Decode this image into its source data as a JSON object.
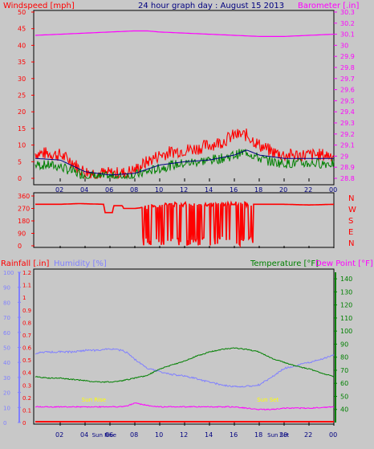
{
  "colors": {
    "background": "#c8c8c8",
    "frame": "#000000",
    "wind_speed": "#ff0000",
    "wind_gust": "#ff0000",
    "wind_avg": "#008000",
    "wind_mid": "#000080",
    "barometer": "#ff00ff",
    "direction": "#ff0000",
    "rainfall": "#ff0000",
    "humidity": "#8080ff",
    "temperature": "#008000",
    "dew_point": "#ff00ff",
    "sun_label": "#ffff00",
    "header_title": "#000080"
  },
  "chart_data": [
    {
      "type": "line",
      "title": "24 hour graph day : August 15 2013",
      "left_axis_label": "Windspeed [mph]",
      "right_axis_label": "Barometer [.in]",
      "x_ticks": [
        "02",
        "04",
        "06",
        "08",
        "10",
        "12",
        "14",
        "16",
        "18",
        "20",
        "22",
        "00"
      ],
      "y_left_ticks": [
        0,
        5,
        10,
        15,
        20,
        25,
        30,
        35,
        40,
        45,
        50
      ],
      "y_left_range": [
        0,
        50
      ],
      "y_right_ticks": [
        "28.8",
        "28.9",
        "29",
        "29.1",
        "29.2",
        "29.3",
        "29.4",
        "29.5",
        "29.6",
        "29.7",
        "29.8",
        "29.9",
        "30",
        "30.1",
        "30.2",
        "30.3"
      ],
      "y_right_range": [
        28.8,
        30.3
      ],
      "series": [
        {
          "role": "gust",
          "hours": [
            0,
            1,
            2,
            3,
            3.5,
            4,
            5,
            6,
            7,
            8,
            9,
            10,
            11,
            12,
            13,
            14,
            15,
            16,
            17,
            18,
            19,
            20,
            21,
            22,
            23,
            24
          ],
          "values": [
            7.5,
            7.5,
            7,
            5,
            3,
            2,
            1.5,
            1.5,
            1.5,
            2.5,
            5,
            7,
            8,
            8.5,
            9,
            10,
            11,
            13,
            13,
            10,
            8,
            7,
            7,
            7,
            7,
            7
          ]
        },
        {
          "role": "avg",
          "hours": [
            0,
            1,
            2,
            3,
            4,
            5,
            6,
            7,
            8,
            9,
            10,
            11,
            12,
            13,
            14,
            15,
            16,
            17,
            18,
            19,
            20,
            21,
            22,
            23,
            24
          ],
          "values": [
            4,
            4,
            3.5,
            2,
            1,
            0.5,
            0.5,
            0.5,
            1,
            2,
            3,
            4,
            4.5,
            5,
            5.5,
            6,
            7,
            8,
            6,
            5,
            4.5,
            4.5,
            4.5,
            4.5,
            4.5
          ]
        },
        {
          "role": "mid",
          "hours": [
            0,
            2,
            4,
            6,
            8,
            10,
            12,
            14,
            16,
            17,
            18,
            20,
            22,
            24
          ],
          "values": [
            6,
            5.5,
            2,
            1,
            1.5,
            4,
            5,
            5.5,
            7,
            8.5,
            7,
            6,
            6,
            6
          ]
        },
        {
          "role": "barometer",
          "hours": [
            0,
            2,
            4,
            6,
            8,
            9,
            10,
            12,
            14,
            16,
            18,
            19,
            20,
            22,
            24
          ],
          "values": [
            30.09,
            30.1,
            30.11,
            30.12,
            30.13,
            30.13,
            30.12,
            30.11,
            30.1,
            30.09,
            30.08,
            30.08,
            30.08,
            30.09,
            30.1
          ]
        }
      ]
    },
    {
      "type": "scatter",
      "title": "",
      "y_ticks": [
        "360",
        "270",
        "180",
        "90",
        "0"
      ],
      "y_range": [
        0,
        360
      ],
      "compass_labels": [
        "N",
        "W",
        "S",
        "E",
        "N"
      ],
      "x_ticks": [
        "02",
        "04",
        "06",
        "08",
        "10",
        "12",
        "14",
        "16",
        "18",
        "20",
        "22",
        "00"
      ],
      "series": [
        {
          "role": "direction",
          "hours": [
            0,
            2,
            3.5,
            5.5,
            5.6,
            6.2,
            6.3,
            7,
            7.1,
            7.5,
            8,
            9,
            10,
            11,
            12,
            13,
            14,
            15,
            16,
            17,
            18,
            20,
            22,
            24
          ],
          "values": [
            300,
            300,
            305,
            300,
            240,
            240,
            290,
            290,
            270,
            270,
            270,
            280,
            290,
            300,
            300,
            305,
            300,
            300,
            305,
            300,
            300,
            300,
            295,
            300
          ]
        }
      ]
    },
    {
      "type": "line",
      "title": "",
      "left_axis_labels": [
        "Rainfall [.in]",
        "Humidity [%]"
      ],
      "right_axis_labels": [
        "Temperature [°F]",
        "Dew Point [°F]"
      ],
      "x_ticks": [
        "02",
        "04",
        "06",
        "08",
        "10",
        "12",
        "14",
        "16",
        "18",
        "20",
        "22",
        "00"
      ],
      "rain_ticks": [
        "0",
        "0.1",
        "0.2",
        "0.3",
        "0.4",
        "0.5",
        "0.6",
        "0.7",
        "0.8",
        "0.9",
        "1",
        "1.1",
        "1.2"
      ],
      "rain_range": [
        0,
        1.2
      ],
      "humidity_ticks": [
        "0",
        "10",
        "20",
        "30",
        "40",
        "50",
        "60",
        "70",
        "80",
        "90",
        "100"
      ],
      "humidity_range": [
        0,
        100
      ],
      "temp_ticks": [
        "40",
        "50",
        "60",
        "70",
        "80",
        "90",
        "100",
        "110",
        "120",
        "130",
        "140"
      ],
      "temp_range": [
        30,
        145
      ],
      "sun_labels": {
        "sunrise": "Sun Rise",
        "sunset": "Sun Set",
        "sunrise_axis": "Sun Rise",
        "sunset_axis": "Sun Set"
      },
      "series": [
        {
          "role": "humidity",
          "hours": [
            0,
            1,
            2,
            3,
            4,
            5,
            6,
            7,
            7.5,
            8,
            9,
            10,
            11,
            12,
            13,
            14,
            15,
            16,
            17,
            18,
            19,
            20,
            21,
            22,
            23,
            24
          ],
          "values": [
            46,
            47,
            47,
            47,
            48,
            48,
            49,
            48,
            46,
            42,
            36,
            34,
            32,
            31,
            29,
            27,
            25,
            24,
            24,
            25,
            30,
            36,
            38,
            40,
            42,
            45
          ]
        },
        {
          "role": "temperature",
          "hours": [
            0,
            1,
            2,
            3,
            4,
            5,
            6,
            7,
            8,
            9,
            10,
            11,
            12,
            13,
            14,
            15,
            16,
            17,
            18,
            19,
            20,
            21,
            22,
            23,
            24
          ],
          "values": [
            65,
            64,
            64,
            63,
            62,
            61,
            61,
            62,
            64,
            66,
            71,
            74,
            77,
            81,
            84,
            86,
            87,
            86,
            84,
            79,
            76,
            73,
            71,
            68,
            65
          ]
        },
        {
          "role": "dew_point",
          "hours": [
            0,
            2,
            4,
            6,
            7,
            7.5,
            8,
            8.5,
            9,
            10,
            12,
            14,
            16,
            18,
            19,
            20,
            22,
            24
          ],
          "values": [
            42,
            42,
            42,
            42,
            42,
            43,
            45,
            44,
            43,
            42,
            42,
            42,
            42,
            40,
            40,
            41,
            41,
            42
          ]
        },
        {
          "role": "rainfall",
          "hours": [
            0,
            24
          ],
          "values": [
            0,
            0
          ]
        }
      ]
    }
  ]
}
